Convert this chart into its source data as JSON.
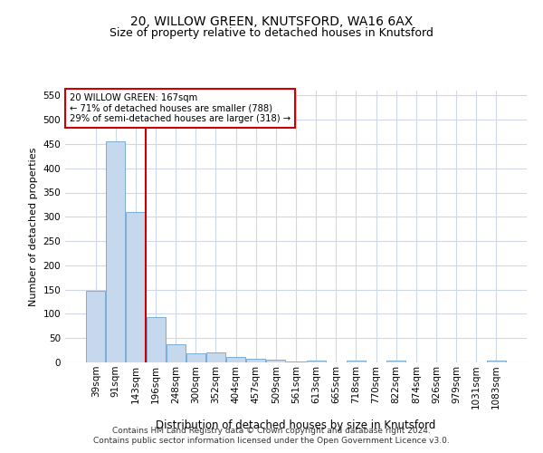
{
  "title1": "20, WILLOW GREEN, KNUTSFORD, WA16 6AX",
  "title2": "Size of property relative to detached houses in Knutsford",
  "xlabel": "Distribution of detached houses by size in Knutsford",
  "ylabel": "Number of detached properties",
  "bar_labels": [
    "39sqm",
    "91sqm",
    "143sqm",
    "196sqm",
    "248sqm",
    "300sqm",
    "352sqm",
    "404sqm",
    "457sqm",
    "509sqm",
    "561sqm",
    "613sqm",
    "665sqm",
    "718sqm",
    "770sqm",
    "822sqm",
    "874sqm",
    "926sqm",
    "979sqm",
    "1031sqm",
    "1083sqm"
  ],
  "bar_values": [
    148,
    455,
    310,
    93,
    38,
    19,
    20,
    11,
    7,
    5,
    1,
    4,
    0,
    4,
    0,
    3,
    0,
    0,
    0,
    0,
    3
  ],
  "bar_color": "#c5d8ed",
  "bar_edge_color": "#7aadd4",
  "vline_x": 2.5,
  "vline_color": "#cc0000",
  "annotation_title": "20 WILLOW GREEN: 167sqm",
  "annotation_line1": "← 71% of detached houses are smaller (788)",
  "annotation_line2": "29% of semi-detached houses are larger (318) →",
  "annotation_box_color": "#ffffff",
  "annotation_box_edge": "#cc0000",
  "footer1": "Contains HM Land Registry data © Crown copyright and database right 2024.",
  "footer2": "Contains public sector information licensed under the Open Government Licence v3.0.",
  "ylim": [
    0,
    560
  ],
  "yticks": [
    0,
    50,
    100,
    150,
    200,
    250,
    300,
    350,
    400,
    450,
    500,
    550
  ],
  "background_color": "#ffffff",
  "grid_color": "#d0d8e8",
  "title1_fontsize": 10,
  "title2_fontsize": 9,
  "ylabel_fontsize": 8,
  "xlabel_fontsize": 8.5,
  "tick_fontsize": 7.5,
  "footer_fontsize": 6.5
}
